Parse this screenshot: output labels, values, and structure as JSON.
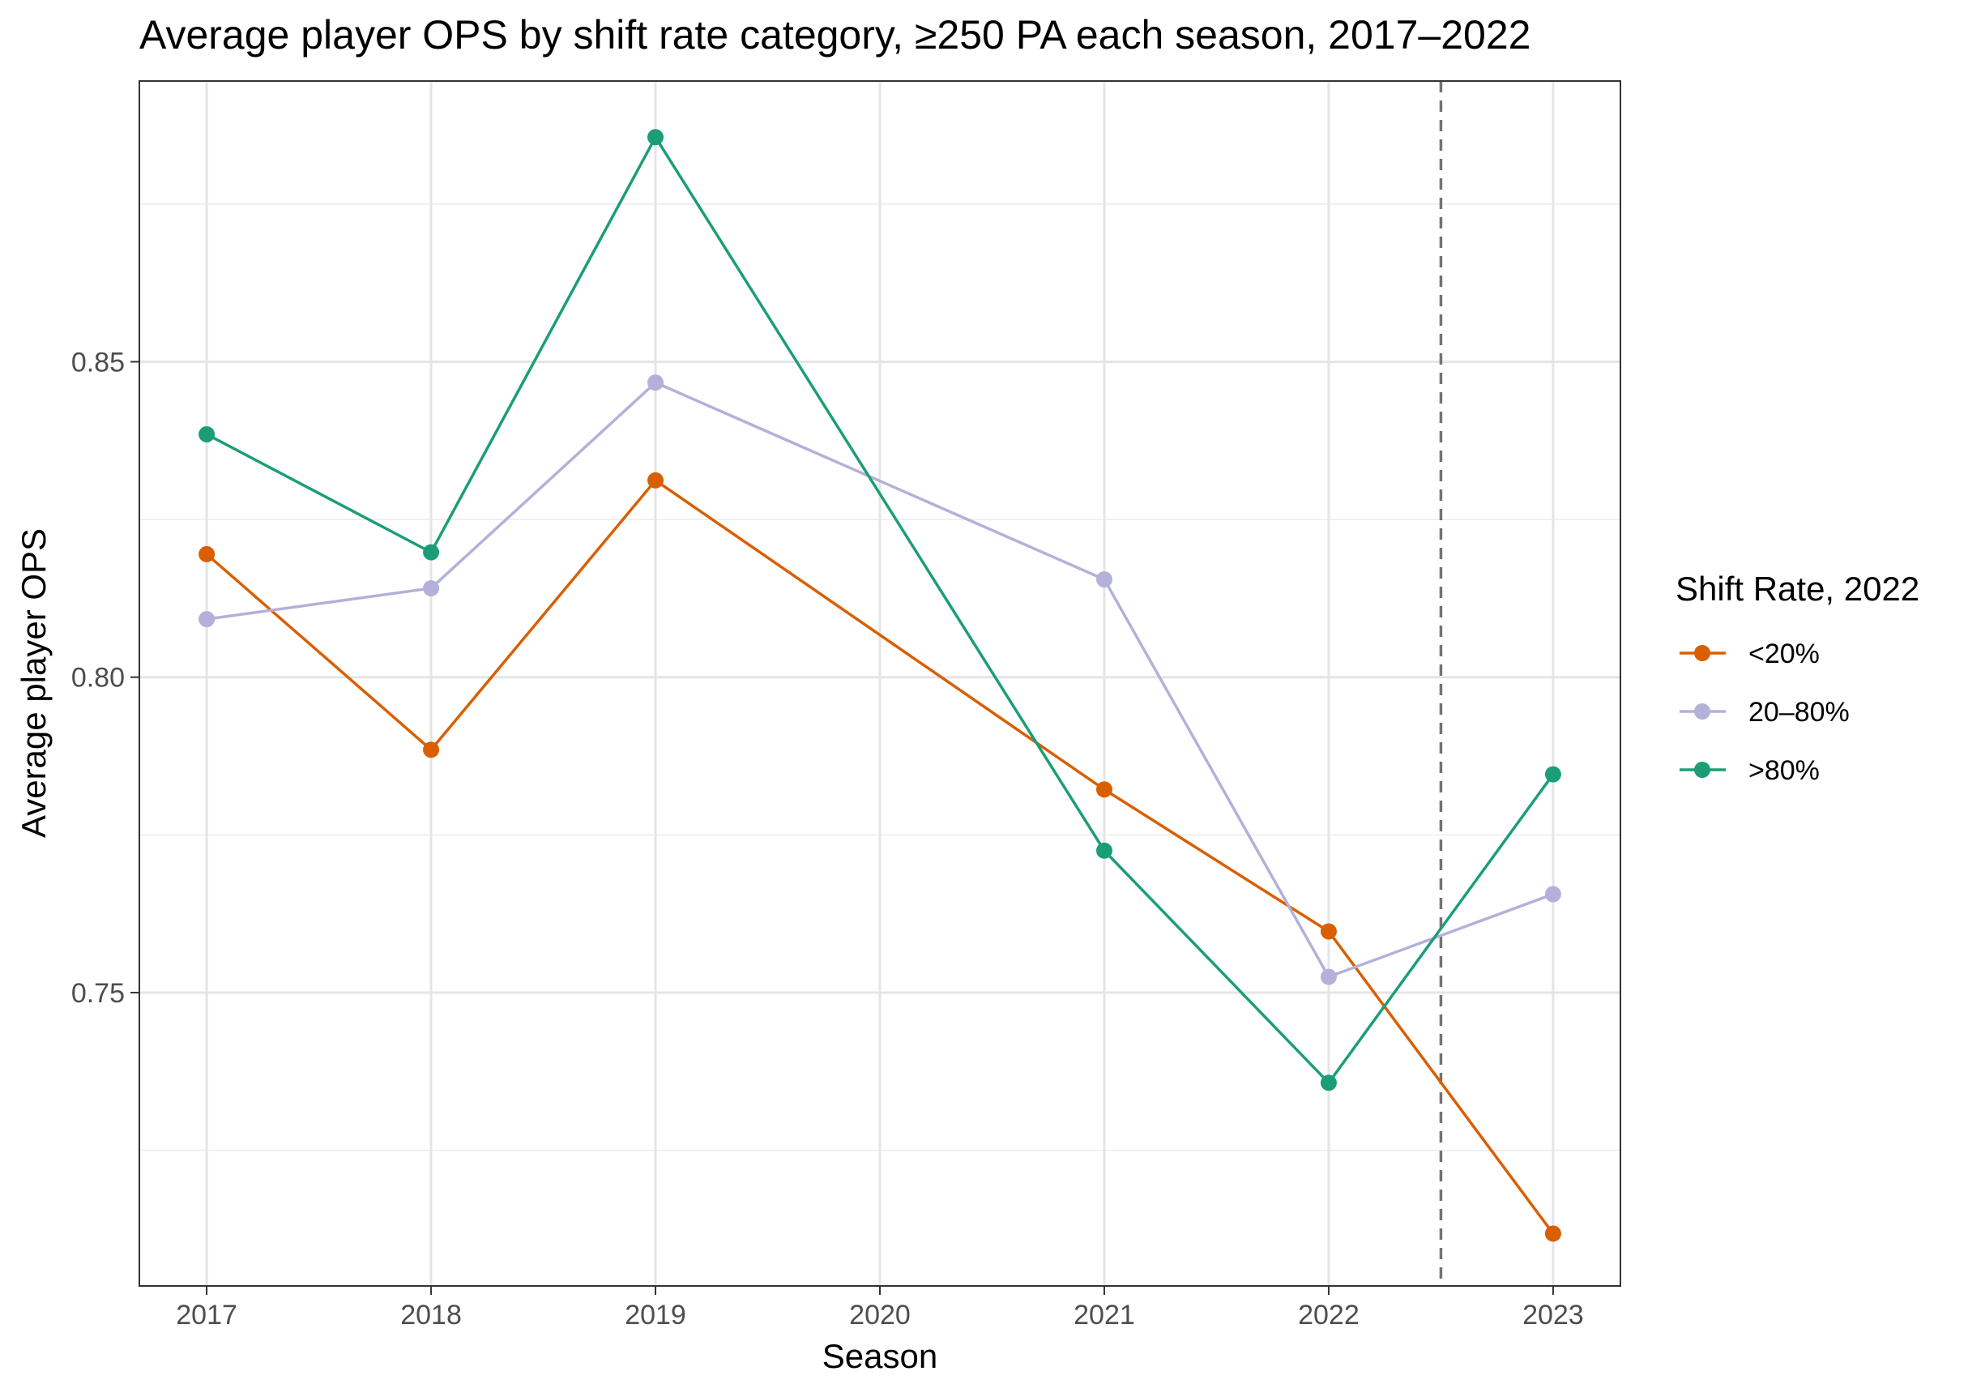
{
  "chart_data": {
    "type": "line",
    "title": "Average player OPS by shift rate category, ≥250 PA each season, 2017–2022",
    "xlabel": "Season",
    "ylabel": "Average player OPS",
    "categories": [
      "2017",
      "2018",
      "2019",
      "2020",
      "2021",
      "2022",
      "2023"
    ],
    "x": [
      2017,
      2018,
      2019,
      2020,
      2021,
      2022,
      2023
    ],
    "xlim": [
      2016.7,
      2023.3
    ],
    "ylim": [
      0.7035,
      0.8945
    ],
    "yticks": [
      0.75,
      0.8,
      0.85
    ],
    "ytick_labels": [
      "0.75",
      "0.80",
      "0.85"
    ],
    "grid": true,
    "reference_line": {
      "x": 2022.5,
      "style": "dashed",
      "color": "#737373"
    },
    "legend": {
      "title": "Shift Rate, 2022",
      "position": "right"
    },
    "series": [
      {
        "name": "<20%",
        "color": "#d95f02",
        "values": [
          0.8195,
          0.7885,
          0.8312,
          null,
          0.7822,
          0.7597,
          0.7118
        ]
      },
      {
        "name": "20–80%",
        "color": "#b3b0d9",
        "values": [
          0.8092,
          0.8141,
          0.8467,
          null,
          0.8155,
          0.7525,
          0.7656
        ]
      },
      {
        "name": ">80%",
        "color": "#1b9e77",
        "values": [
          0.8385,
          0.8198,
          0.8856,
          null,
          0.7725,
          0.7357,
          0.7846
        ]
      }
    ]
  }
}
